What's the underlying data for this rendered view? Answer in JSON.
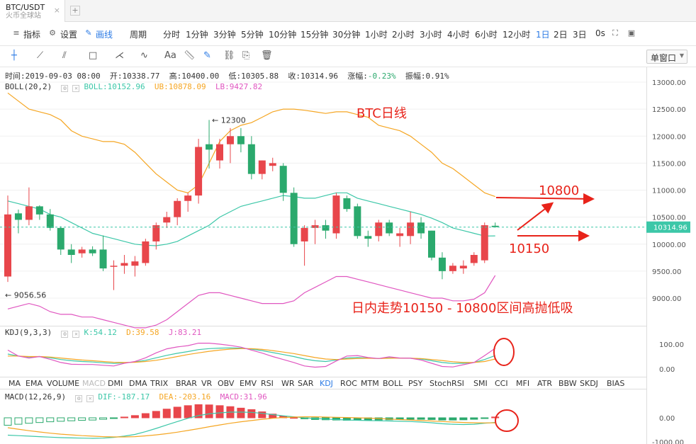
{
  "tab": {
    "title": "BTC/USDT",
    "subtitle": "火币全球站",
    "close": "×",
    "add": "+"
  },
  "toolbar1": {
    "indicators": "指标",
    "settings": "设置",
    "draw": "画线",
    "period_label": "周期",
    "periods": [
      "分时",
      "1分钟",
      "3分钟",
      "5分钟",
      "10分钟",
      "15分钟",
      "30分钟",
      "1小时",
      "2小时",
      "3小时",
      "4小时",
      "6小时",
      "12小时",
      "1日",
      "2日",
      "3日"
    ],
    "active_period": "1日",
    "misc": "0s",
    "window": "单窗口"
  },
  "toolbar2": {
    "items": [
      "crosshair",
      "line",
      "ray",
      "rect",
      "fork",
      "wave",
      "Aa",
      "ruler",
      "pen",
      "chain",
      "copy",
      "trash"
    ]
  },
  "info": {
    "label": "时间:2019-09-03 08:00  开:10338.77  高:10400.00  低:10305.88  收:10314.96  涨幅:",
    "change": "-0.23%",
    "amp_label": "  振幅:",
    "amp": "0.91%"
  },
  "boll": {
    "label": "BOLL(20,2)",
    "mid": "BOLL:10152.96",
    "ub": "UB:10878.09",
    "lb": "LB:9427.82"
  },
  "kdj": {
    "label": "KDJ(9,3,3)",
    "k": "K:54.12",
    "d": "D:39.58",
    "j": "J:83.21"
  },
  "macd": {
    "label": "MACD(12,26,9)",
    "dif": "DIF:-187.17",
    "dea": "DEA:-203.16",
    "macd": "MACD:31.96"
  },
  "indicator_tabs": [
    "MA",
    "EMA",
    "VOLUME",
    "MACD",
    "DMI",
    "DMA",
    "TRIX",
    "BRAR",
    "VR",
    "OBV",
    "EMV",
    "RSI",
    "WR",
    "SAR",
    "KDJ",
    "ROC",
    "MTM",
    "BOLL",
    "PSY",
    "StochRSI",
    "SMI",
    "CCI",
    "MFI",
    "ATR",
    "BBW",
    "SKDJ",
    "BIAS"
  ],
  "annotations": {
    "title": "BTC日线",
    "high": "12300",
    "low": "9056.56",
    "up_target": "10800",
    "down_target": "10150",
    "note": "日内走势10150 - 10800区间高抛低吸"
  },
  "price_axis": {
    "ticks": [
      "13000.00",
      "12500.00",
      "12000.00",
      "11500.00",
      "11000.00",
      "10500.00",
      "10000.00",
      "9500.00",
      "9000.00"
    ],
    "last": "10314.96"
  },
  "kdj_axis": {
    "ticks": [
      "100.00",
      "0.00"
    ]
  },
  "macd_axis": {
    "ticks": [
      "0.00",
      "-1000.00"
    ]
  },
  "colors": {
    "up": "#e8464b",
    "down": "#2ba96d",
    "ub": "#f5a623",
    "mid": "#3cc7a8",
    "lb": "#e056c0",
    "anno": "#e8231a",
    "accent": "#2c7be5"
  },
  "chart_data": {
    "type": "candlestick",
    "ylim": [
      8800,
      13200
    ],
    "candles": [
      {
        "o": 9400,
        "h": 10900,
        "l": 9300,
        "c": 10550
      },
      {
        "o": 10570,
        "h": 10640,
        "l": 10200,
        "c": 10450
      },
      {
        "o": 10450,
        "h": 11050,
        "l": 10350,
        "c": 10700
      },
      {
        "o": 10700,
        "h": 10720,
        "l": 10450,
        "c": 10550
      },
      {
        "o": 10550,
        "h": 10650,
        "l": 10250,
        "c": 10300
      },
      {
        "o": 10300,
        "h": 10330,
        "l": 9800,
        "c": 9900
      },
      {
        "o": 9900,
        "h": 10000,
        "l": 9650,
        "c": 9800
      },
      {
        "o": 9830,
        "h": 9950,
        "l": 9750,
        "c": 9900
      },
      {
        "o": 9900,
        "h": 9960,
        "l": 9780,
        "c": 9830
      },
      {
        "o": 9900,
        "h": 10160,
        "l": 9500,
        "c": 9550
      },
      {
        "o": 9580,
        "h": 9700,
        "l": 9150,
        "c": 9600
      },
      {
        "o": 9600,
        "h": 9800,
        "l": 9450,
        "c": 9650
      },
      {
        "o": 9600,
        "h": 9780,
        "l": 9400,
        "c": 9680
      },
      {
        "o": 9650,
        "h": 10100,
        "l": 9600,
        "c": 10050
      },
      {
        "o": 10050,
        "h": 10400,
        "l": 9900,
        "c": 10350
      },
      {
        "o": 10400,
        "h": 10600,
        "l": 10300,
        "c": 10500
      },
      {
        "o": 10500,
        "h": 10850,
        "l": 10350,
        "c": 10800
      },
      {
        "o": 10800,
        "h": 10950,
        "l": 10600,
        "c": 10900
      },
      {
        "o": 10900,
        "h": 11950,
        "l": 10750,
        "c": 11800
      },
      {
        "o": 11850,
        "h": 12300,
        "l": 11400,
        "c": 11750
      },
      {
        "o": 11550,
        "h": 11950,
        "l": 11400,
        "c": 11850
      },
      {
        "o": 11850,
        "h": 12150,
        "l": 11500,
        "c": 12000
      },
      {
        "o": 12000,
        "h": 12150,
        "l": 11700,
        "c": 11850
      },
      {
        "o": 11850,
        "h": 12000,
        "l": 11200,
        "c": 11300
      },
      {
        "o": 11300,
        "h": 11550,
        "l": 11200,
        "c": 11550
      },
      {
        "o": 11450,
        "h": 11600,
        "l": 11350,
        "c": 11500
      },
      {
        "o": 11450,
        "h": 11500,
        "l": 10800,
        "c": 10950
      },
      {
        "o": 10950,
        "h": 11050,
        "l": 9950,
        "c": 10000
      },
      {
        "o": 10050,
        "h": 10350,
        "l": 9600,
        "c": 10300
      },
      {
        "o": 10300,
        "h": 10450,
        "l": 10000,
        "c": 10350
      },
      {
        "o": 10350,
        "h": 10450,
        "l": 10100,
        "c": 10250
      },
      {
        "o": 10200,
        "h": 10950,
        "l": 10100,
        "c": 10900
      },
      {
        "o": 10850,
        "h": 10900,
        "l": 10600,
        "c": 10650
      },
      {
        "o": 10700,
        "h": 10750,
        "l": 10100,
        "c": 10150
      },
      {
        "o": 10150,
        "h": 10250,
        "l": 9950,
        "c": 10100
      },
      {
        "o": 10150,
        "h": 10450,
        "l": 10050,
        "c": 10400
      },
      {
        "o": 10400,
        "h": 10450,
        "l": 10150,
        "c": 10200
      },
      {
        "o": 10150,
        "h": 10300,
        "l": 9950,
        "c": 10200
      },
      {
        "o": 10150,
        "h": 10600,
        "l": 10000,
        "c": 10400
      },
      {
        "o": 10400,
        "h": 10500,
        "l": 10100,
        "c": 10200
      },
      {
        "o": 10250,
        "h": 10250,
        "l": 9700,
        "c": 9750
      },
      {
        "o": 9750,
        "h": 9850,
        "l": 9350,
        "c": 9500
      },
      {
        "o": 9500,
        "h": 9650,
        "l": 9450,
        "c": 9600
      },
      {
        "o": 9550,
        "h": 9700,
        "l": 9450,
        "c": 9600
      },
      {
        "o": 9650,
        "h": 9850,
        "l": 9600,
        "c": 9800
      },
      {
        "o": 9700,
        "h": 10400,
        "l": 9650,
        "c": 10350
      },
      {
        "o": 10340,
        "h": 10400,
        "l": 10306,
        "c": 10315
      }
    ],
    "boll_ub": [
      12800,
      12650,
      12500,
      12450,
      12400,
      12300,
      12100,
      12000,
      11950,
      11900,
      11900,
      11850,
      11700,
      11500,
      11300,
      11150,
      11000,
      10950,
      11100,
      11500,
      11900,
      12100,
      12200,
      12250,
      12350,
      12450,
      12500,
      12500,
      12480,
      12450,
      12420,
      12450,
      12450,
      12400,
      12350,
      12200,
      12150,
      12100,
      12000,
      11850,
      11700,
      11500,
      11400,
      11250,
      11100,
      10950,
      10880
    ],
    "boll_mid": [
      10800,
      10750,
      10700,
      10650,
      10550,
      10500,
      10400,
      10300,
      10200,
      10150,
      10100,
      10050,
      10000,
      9980,
      9970,
      10000,
      10050,
      10150,
      10250,
      10350,
      10500,
      10600,
      10700,
      10750,
      10800,
      10850,
      10900,
      10880,
      10850,
      10850,
      10900,
      10950,
      10950,
      10850,
      10800,
      10750,
      10700,
      10650,
      10600,
      10550,
      10480,
      10400,
      10300,
      10250,
      10200,
      10150,
      10153
    ],
    "boll_lb": [
      8800,
      8850,
      8900,
      8850,
      8750,
      8700,
      8700,
      8650,
      8650,
      8600,
      8550,
      8500,
      8450,
      8450,
      8500,
      8600,
      8750,
      8900,
      9050,
      9100,
      9100,
      9050,
      9000,
      8950,
      8900,
      8900,
      8900,
      8950,
      9100,
      9200,
      9300,
      9400,
      9400,
      9350,
      9300,
      9250,
      9200,
      9150,
      9100,
      9050,
      9000,
      9000,
      8950,
      8950,
      8980,
      9100,
      9420
    ],
    "kdj_k": [
      60,
      52,
      48,
      50,
      45,
      38,
      33,
      30,
      28,
      25,
      22,
      25,
      28,
      35,
      45,
      55,
      63,
      70,
      78,
      82,
      84,
      85,
      84,
      80,
      74,
      66,
      58,
      50,
      40,
      33,
      30,
      36,
      44,
      46,
      44,
      42,
      45,
      44,
      43,
      40,
      33,
      26,
      22,
      23,
      26,
      38,
      54
    ],
    "kdj_d": [
      52,
      52,
      50,
      50,
      48,
      44,
      40,
      36,
      33,
      30,
      27,
      26,
      27,
      30,
      35,
      42,
      50,
      58,
      65,
      71,
      76,
      80,
      82,
      82,
      79,
      74,
      68,
      62,
      54,
      46,
      40,
      38,
      40,
      42,
      43,
      42,
      43,
      44,
      43,
      42,
      38,
      34,
      29,
      26,
      26,
      30,
      40
    ],
    "kdj_j": [
      76,
      52,
      44,
      50,
      39,
      26,
      19,
      18,
      18,
      15,
      12,
      23,
      30,
      45,
      65,
      81,
      89,
      94,
      104,
      104,
      100,
      95,
      88,
      76,
      64,
      50,
      38,
      26,
      12,
      7,
      10,
      32,
      52,
      54,
      46,
      42,
      49,
      44,
      43,
      36,
      23,
      10,
      8,
      17,
      26,
      54,
      83
    ],
    "macd_dif": [
      -700,
      -720,
      -740,
      -760,
      -780,
      -800,
      -810,
      -820,
      -830,
      -820,
      -790,
      -740,
      -670,
      -560,
      -430,
      -290,
      -150,
      -20,
      90,
      160,
      200,
      230,
      230,
      220,
      180,
      130,
      80,
      40,
      0,
      -30,
      -50,
      -70,
      -90,
      -100,
      -110,
      -120,
      -130,
      -140,
      -150,
      -170,
      -200,
      -240,
      -260,
      -270,
      -260,
      -220,
      -187
    ],
    "macd_dea": [
      -400,
      -460,
      -520,
      -570,
      -620,
      -660,
      -690,
      -720,
      -740,
      -760,
      -770,
      -770,
      -760,
      -730,
      -690,
      -640,
      -580,
      -510,
      -440,
      -360,
      -290,
      -220,
      -160,
      -110,
      -60,
      -20,
      10,
      30,
      40,
      40,
      30,
      20,
      10,
      0,
      -10,
      -30,
      -50,
      -70,
      -90,
      -110,
      -130,
      -150,
      -170,
      -190,
      -200,
      -205,
      -203
    ],
    "macd_hist": [
      -300,
      -260,
      -220,
      -190,
      -160,
      -140,
      -120,
      -100,
      -90,
      -60,
      -20,
      30,
      90,
      170,
      260,
      350,
      430,
      490,
      530,
      520,
      490,
      450,
      390,
      330,
      240,
      150,
      70,
      10,
      -40,
      -70,
      -80,
      -90,
      -100,
      -100,
      -100,
      -90,
      -80,
      -70,
      -60,
      -60,
      -70,
      -90,
      -90,
      -80,
      -60,
      -15,
      32
    ]
  }
}
